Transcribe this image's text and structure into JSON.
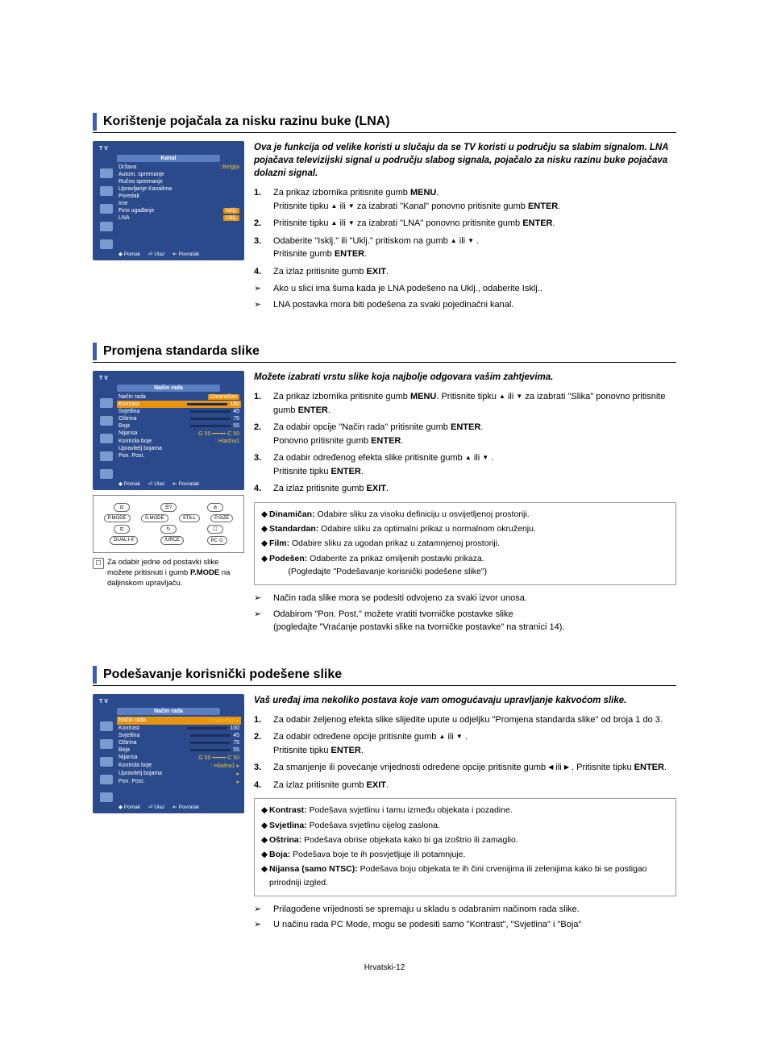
{
  "page_footer": "Hrvatski-12",
  "colors": {
    "title_bar": "#3a5ea8",
    "osd_bg": "#2b4a8c",
    "osd_highlight": "#e8940f",
    "osd_value": "#f0c030"
  },
  "sections": [
    {
      "title": "Korištenje pojačala za nisku razinu buke (LNA)",
      "osd": {
        "tv": "T V",
        "header": "Kanal",
        "items": [
          {
            "label": "Država",
            "value": ": Belgija"
          },
          {
            "label": "Autom. spremanje",
            "value": ""
          },
          {
            "label": "Ručno spremanje",
            "value": ""
          },
          {
            "label": "Upravljanje Kanalima",
            "value": ""
          },
          {
            "label": "Poredak",
            "value": ""
          },
          {
            "label": "Ime",
            "value": ""
          },
          {
            "label": "Fino ugađanje",
            "value": "Isklj.",
            "hlval": true
          },
          {
            "label": "LNA",
            "value": "Uklj.",
            "hlval": true
          }
        ],
        "footer": [
          "◆ Pomak",
          "⏎ Ulaz",
          "⇤ Povratak"
        ]
      },
      "intro": "Ova je funkcija od velike koristi u slučaju da se TV koristi u području sa slabim signalom. LNA pojačava televizijski signal u području slabog signala, pojačalo za nisku razinu buke pojačava dolazni signal.",
      "steps": [
        {
          "n": "1.",
          "t": "Za prikaz izbornika pritisnite gumb <b>MENU</b>.<br>Pritisnite tipku <span class='tri'>▲</span> ili <span class='tri'>▼</span> za izabrati \"Kanal\" ponovno pritisnite gumb <b>ENTER</b>."
        },
        {
          "n": "2.",
          "t": "Pritisnite tipku <span class='tri'>▲</span> ili <span class='tri'>▼</span> za izabrati \"LNA\" ponovno pritisnite gumb <b>ENTER</b>."
        },
        {
          "n": "3.",
          "t": "Odaberite \"Isklj.\" ili \"Uklj.\" pritiskom na gumb <span class='tri'>▲</span> ili <span class='tri'>▼</span> .<br>Pritisnite gumb <b>ENTER</b>."
        },
        {
          "n": "4.",
          "t": "Za izlaz pritisnite gumb <b>EXIT</b>."
        }
      ],
      "arrows": [
        "Ako u slici ima šuma kada je LNA  podešeno na Uklj., odaberite Isklj..",
        "LNA postavka mora biti podešena za svaki pojedinačni kanal."
      ]
    },
    {
      "title": "Promjena standarda slike",
      "osd": {
        "tv": "T V",
        "header": "Način rada",
        "items": [
          {
            "label": "Način rada",
            "value": "Dinamičan",
            "hlval": true
          },
          {
            "label": "Kontrast",
            "value": "100",
            "bar": 100,
            "hl": true
          },
          {
            "label": "Svjetlina",
            "value": "45",
            "bar": 45
          },
          {
            "label": "Oštrina",
            "value": "75",
            "bar": 75
          },
          {
            "label": "Boja",
            "value": "55",
            "bar": 55
          },
          {
            "label": "Nijansa",
            "value": "G 50 ━━━━ C 50"
          },
          {
            "label": "Kontrola boje",
            "value": ": Hladna1"
          },
          {
            "label": "Upravitelj bojama",
            "value": ""
          },
          {
            "label": "Pon. Post.",
            "value": ""
          }
        ],
        "footer": [
          "◆ Pomak",
          "⏎ Ulaz",
          "⇤ Povratak"
        ]
      },
      "remote": {
        "rows": [
          [
            "⊡",
            "☰?",
            "⊘"
          ],
          [
            "P.MODE",
            "S.MODE",
            "STILL",
            "P.SIZE"
          ],
          [
            "⊡",
            "↻",
            "☐"
          ],
          [
            "DUAL I-II",
            "/URCE",
            "PC ⊙"
          ]
        ]
      },
      "caption": "Za odabir jedne od postavki slike možete pritisnuti i gumb <b>P.MODE</b> na daljinskom upravljaču.",
      "intro": "Možete izabrati vrstu slike koja najbolje odgovara vašim zahtjevima.",
      "steps": [
        {
          "n": "1.",
          "t": "Za prikaz izbornika pritisnite gumb <b>MENU</b>. Pritisnite tipku <span class='tri'>▲</span> ili <span class='tri'>▼</span> za izabrati \"Slika\" ponovno pritisnite gumb <b>ENTER</b>."
        },
        {
          "n": "2.",
          "t": "Za odabir opcije \"Način rada\" pritisnite gumb <b>ENTER</b>.<br>Ponovno pritisnite gumb <b>ENTER</b>."
        },
        {
          "n": "3.",
          "t": "Za odabir određenog efekta slike pritisnite gumb <span class='tri'>▲</span> ili <span class='tri'>▼</span> .<br>Pritisnite tipku <b>ENTER</b>."
        },
        {
          "n": "4.",
          "t": "Za izlaz pritisnite gumb <b>EXIT</b>."
        }
      ],
      "box": [
        {
          "k": "Dinamičan:",
          "v": "Odabire sliku za visoku definiciju u osvijetljenoj prostoriji."
        },
        {
          "k": "Standardan:",
          "v": "Odabire sliku za optimalni prikaz u normalnom okruženju."
        },
        {
          "k": "Film:",
          "v": "Odabire sliku za ugodan prikaz u zatamnjenoj prostoriji."
        },
        {
          "k": "Podešen:",
          "v": "Odaberite za prikaz omiljenih postavki prikaza.<br>&nbsp;&nbsp;&nbsp;&nbsp;&nbsp;&nbsp;&nbsp;&nbsp;(Pogledajte \"Podešavanje korisnički podešene slike\")"
        }
      ],
      "arrows": [
        "Način rada slike mora se podesiti odvojeno za svaki izvor unosa.",
        "Odabirom \"Pon. Post.\" možete vratiti tvorničke postavke slike<br>(pogledajte \"Vraćanje postavki slike na tvorničke postavke\" na stranici 14)."
      ]
    },
    {
      "title": "Podešavanje korisnički podešene slike",
      "osd": {
        "tv": "T V",
        "header": "Način rada",
        "items": [
          {
            "label": "Način rada",
            "value": ": Dinamičan   ▸",
            "hl": true
          },
          {
            "label": "Kontrast",
            "value": "100",
            "bar": 100
          },
          {
            "label": "Svjetlina",
            "value": "45",
            "bar": 45
          },
          {
            "label": "Oštrina",
            "value": "75",
            "bar": 75
          },
          {
            "label": "Boja",
            "value": "55",
            "bar": 55
          },
          {
            "label": "Nijansa",
            "value": "G 50 ━━━━ C 50"
          },
          {
            "label": "Kontrola boje",
            "value": ": Hladna1   ▸"
          },
          {
            "label": "Upravitelj bojama",
            "value": "▸"
          },
          {
            "label": "Pon. Post.",
            "value": "▸"
          }
        ],
        "footer": [
          "◆ Pomak",
          "⏎ Ulaz",
          "⇤ Povratak"
        ]
      },
      "intro": "Vaš uređaj ima nekoliko postava koje vam omogućavaju upravljanje kakvoćom slike.",
      "steps": [
        {
          "n": "1.",
          "t": "Za odabir željenog efekta slike slijedite upute u odjeljku \"Promjena standarda slike\" od broja 1 do 3."
        },
        {
          "n": "2.",
          "t": "Za odabir određene opcije pritisnite gumb <span class='tri'>▲</span> ili <span class='tri'>▼</span> .<br>Pritisnite tipku <b>ENTER</b>."
        },
        {
          "n": "3.",
          "t": "Za smanjenje ili povećanje vrijednosti određene opcije pritisnite gumb <span class='tri'>◀</span> ili <span class='tri'>▶</span> . Pritisnite tipku <b>ENTER</b>."
        },
        {
          "n": "4.",
          "t": "Za izlaz pritisnite gumb <b>EXIT</b>."
        }
      ],
      "box": [
        {
          "k": "Kontrast:",
          "v": "Podešava svjetlinu i tamu između objekata i pozadine."
        },
        {
          "k": "Svjetlina:",
          "v": "Podešava svjetlinu cijelog zaslona."
        },
        {
          "k": "Oštrina:",
          "v": "Podešava obrise objekata kako bi ga izoštrio ili zamaglio."
        },
        {
          "k": "Boja:",
          "v": "Podešava boje te ih posvjetljuje ili potamnjuje."
        },
        {
          "k": "Nijansa (samo NTSC):",
          "v": "Podešava boju objekata te ih čini crvenijima ili zelenijima kako bi se postigao prirodniji izgled."
        }
      ],
      "arrows": [
        "Prilagođene vrijednosti se spremaju u skladu s odabranim načinom rada slike.",
        "U načinu rada PC Mode, mogu se podesiti samo \"Kontrast\", \"Svjetlina\" i \"Boja\""
      ]
    }
  ]
}
